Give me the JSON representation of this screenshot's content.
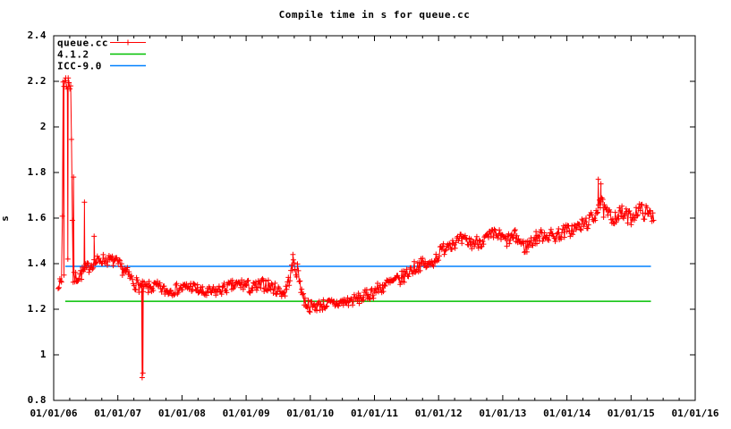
{
  "title": "Compile time in s for queue.cc",
  "legend": {
    "entries": [
      {
        "label": "queue.cc",
        "color": "#ff0000",
        "marker": "plus-line"
      },
      {
        "label": "4.1.2",
        "color": "#00c000",
        "marker": "line"
      },
      {
        "label": "ICC-9.0",
        "color": "#0080ff",
        "marker": "line"
      }
    ]
  },
  "chart_data": {
    "type": "line",
    "title": "Compile time in s for queue.cc",
    "xlabel": "",
    "ylabel": "s",
    "grid": false,
    "legend_position": "top-left",
    "ylim": [
      0.8,
      2.4
    ],
    "ytick_values": [
      0.8,
      1.0,
      1.2,
      1.4,
      1.6,
      1.8,
      2.0,
      2.2,
      2.4
    ],
    "ytick_labels": [
      "0.8",
      "1",
      "1.2",
      "1.4",
      "1.6",
      "1.8",
      "2",
      "2.2",
      "2.4"
    ],
    "xlim_years": [
      2006,
      2016
    ],
    "xtick_years": [
      2006,
      2007,
      2008,
      2009,
      2010,
      2011,
      2012,
      2013,
      2014,
      2015,
      2016
    ],
    "xtick_labels": [
      "01/01/06",
      "01/01/07",
      "01/01/08",
      "01/01/09",
      "01/01/10",
      "01/01/11",
      "01/01/12",
      "01/01/13",
      "01/01/14",
      "01/01/15",
      "01/01/16"
    ],
    "x_minor_step_years": 0.25,
    "axis_color": "#000000",
    "series": [
      {
        "name": "queue.cc",
        "color": "#ff0000",
        "marker": "plus",
        "style": "linespoints",
        "sample_step_years": 0.013,
        "seed": 7,
        "trend": [
          [
            2006.07,
            1.31,
            0.02
          ],
          [
            2006.13,
            1.32,
            0.02
          ],
          [
            2006.145,
            2.2,
            0.04
          ],
          [
            2006.27,
            2.19,
            0.04
          ],
          [
            2006.3,
            1.33,
            0.03
          ],
          [
            2006.45,
            1.36,
            0.03
          ],
          [
            2006.6,
            1.4,
            0.025
          ],
          [
            2006.75,
            1.42,
            0.025
          ],
          [
            2006.95,
            1.41,
            0.025
          ],
          [
            2007.1,
            1.37,
            0.03
          ],
          [
            2007.25,
            1.32,
            0.03
          ],
          [
            2007.4,
            1.29,
            0.03
          ],
          [
            2007.6,
            1.3,
            0.025
          ],
          [
            2007.75,
            1.28,
            0.025
          ],
          [
            2007.95,
            1.29,
            0.025
          ],
          [
            2008.15,
            1.3,
            0.025
          ],
          [
            2008.35,
            1.27,
            0.025
          ],
          [
            2008.55,
            1.28,
            0.025
          ],
          [
            2008.75,
            1.3,
            0.025
          ],
          [
            2008.95,
            1.31,
            0.03
          ],
          [
            2009.1,
            1.29,
            0.03
          ],
          [
            2009.3,
            1.31,
            0.03
          ],
          [
            2009.45,
            1.29,
            0.025
          ],
          [
            2009.6,
            1.27,
            0.025
          ],
          [
            2009.68,
            1.34,
            0.03
          ],
          [
            2009.74,
            1.4,
            0.03
          ],
          [
            2009.82,
            1.35,
            0.04
          ],
          [
            2009.9,
            1.24,
            0.03
          ],
          [
            2010.0,
            1.21,
            0.025
          ],
          [
            2010.2,
            1.22,
            0.025
          ],
          [
            2010.4,
            1.225,
            0.025
          ],
          [
            2010.6,
            1.235,
            0.025
          ],
          [
            2010.8,
            1.25,
            0.025
          ],
          [
            2011.0,
            1.28,
            0.03
          ],
          [
            2011.2,
            1.31,
            0.03
          ],
          [
            2011.4,
            1.33,
            0.03
          ],
          [
            2011.6,
            1.38,
            0.03
          ],
          [
            2011.75,
            1.4,
            0.025
          ],
          [
            2011.85,
            1.39,
            0.025
          ],
          [
            2012.0,
            1.44,
            0.03
          ],
          [
            2012.15,
            1.49,
            0.03
          ],
          [
            2012.35,
            1.5,
            0.03
          ],
          [
            2012.55,
            1.49,
            0.03
          ],
          [
            2012.75,
            1.51,
            0.03
          ],
          [
            2012.9,
            1.53,
            0.03
          ],
          [
            2013.05,
            1.5,
            0.03
          ],
          [
            2013.2,
            1.52,
            0.03
          ],
          [
            2013.35,
            1.47,
            0.03
          ],
          [
            2013.5,
            1.51,
            0.03
          ],
          [
            2013.65,
            1.53,
            0.03
          ],
          [
            2013.8,
            1.52,
            0.03
          ],
          [
            2013.95,
            1.54,
            0.03
          ],
          [
            2014.1,
            1.55,
            0.03
          ],
          [
            2014.25,
            1.57,
            0.03
          ],
          [
            2014.42,
            1.6,
            0.035
          ],
          [
            2014.5,
            1.68,
            0.05
          ],
          [
            2014.58,
            1.63,
            0.035
          ],
          [
            2014.7,
            1.6,
            0.03
          ],
          [
            2014.85,
            1.62,
            0.035
          ],
          [
            2015.0,
            1.6,
            0.03
          ],
          [
            2015.12,
            1.64,
            0.03
          ],
          [
            2015.25,
            1.62,
            0.035
          ],
          [
            2015.36,
            1.61,
            0.03
          ]
        ],
        "spikes": [
          [
            2006.16,
            1.35
          ],
          [
            2006.22,
            1.42
          ],
          [
            2006.31,
            1.78
          ],
          [
            2006.48,
            1.67
          ],
          [
            2006.63,
            1.52
          ],
          [
            2007.38,
            0.9
          ],
          [
            2007.39,
            0.92
          ],
          [
            2009.73,
            1.44
          ],
          [
            2014.49,
            1.77
          ],
          [
            2014.53,
            1.75
          ]
        ]
      }
    ],
    "ref_lines": [
      {
        "label": "4.1.2",
        "value": 1.235,
        "color": "#00c000",
        "x_start": 2006.18,
        "x_end": 2015.31
      },
      {
        "label": "ICC-9.0",
        "value": 1.388,
        "color": "#0080ff",
        "x_start": 2006.18,
        "x_end": 2015.31
      }
    ]
  }
}
